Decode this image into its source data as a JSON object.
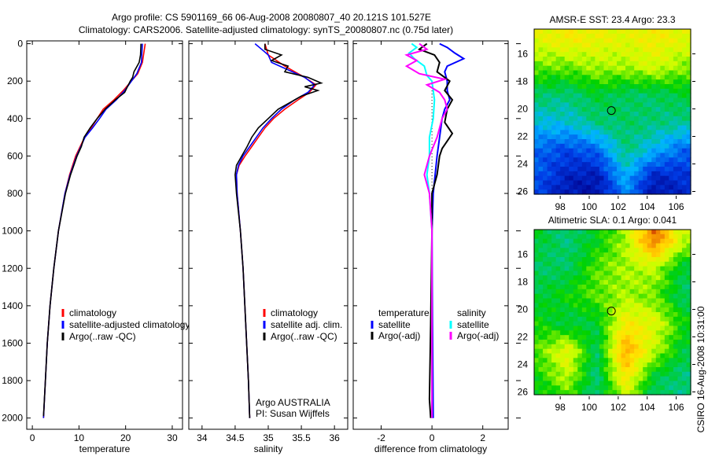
{
  "title": {
    "line1": "Argo profile: CS 5901169_66 06-Aug-2008 20080807_40 20.121S 101.527E",
    "line2": "Climatology: CARS2006. Satellite-adjusted climatology: synTS_20080807.nc (0.75d later)"
  },
  "footer_stamp": "CSIRO 16-Aug-2008 10:31:00",
  "colors": {
    "red": "#ff0000",
    "blue": "#0000ff",
    "black": "#000000",
    "cyan": "#00ffff",
    "magenta": "#ff00ff"
  },
  "chart_data": [
    {
      "type": "line",
      "id": "temperature",
      "xlabel": "temperature",
      "ylabel": "",
      "xlim": [
        -1.2,
        32.2
      ],
      "ylim": [
        2060,
        -15
      ],
      "xticks": [
        "0",
        "10",
        "20",
        "30"
      ],
      "xtick_values": [
        0,
        10,
        20,
        30
      ],
      "yticks": [
        "0",
        "200",
        "400",
        "600",
        "800",
        "1000",
        "1200",
        "1400",
        "1600",
        "1800",
        "2000"
      ],
      "ytick_values": [
        0,
        200,
        400,
        600,
        800,
        1000,
        1200,
        1400,
        1600,
        1800,
        2000
      ],
      "legend": [
        "climatology",
        "satellite-adjusted climatology",
        "Argo(..raw -QC)"
      ],
      "series": [
        {
          "name": "climatology",
          "color": "#ff0000",
          "depth": [
            0,
            100,
            160,
            250,
            300,
            350,
            400,
            450,
            500,
            600,
            700,
            800,
            1000,
            1200,
            1400,
            1600,
            1800,
            2000
          ],
          "values": [
            24.2,
            23.6,
            22.6,
            19.5,
            17.5,
            15.2,
            13.9,
            12.6,
            11.2,
            9.3,
            8.0,
            7.0,
            5.6,
            4.6,
            3.8,
            3.2,
            2.8,
            2.4
          ]
        },
        {
          "name": "satellite-adjusted climatology",
          "color": "#0000ff",
          "depth": [
            0,
            100,
            160,
            250,
            300,
            350,
            400,
            450,
            500,
            600,
            700,
            800,
            1000,
            1200,
            1400,
            1600,
            1800,
            2000
          ],
          "values": [
            23.6,
            23.4,
            22.4,
            19.8,
            18.0,
            15.8,
            14.4,
            12.9,
            11.3,
            9.5,
            8.1,
            7.0,
            5.6,
            4.6,
            3.8,
            3.2,
            2.8,
            2.4
          ]
        },
        {
          "name": "Argo(..raw -QC)",
          "color": "#000000",
          "depth": [
            0,
            60,
            100,
            150,
            180,
            200,
            230,
            260,
            300,
            350,
            400,
            450,
            500,
            550,
            600,
            650,
            700,
            800,
            1000,
            1200,
            1400,
            1600,
            1800,
            1990
          ],
          "values": [
            23.3,
            23.2,
            22.9,
            21.8,
            21.5,
            21.0,
            20.4,
            19.8,
            17.8,
            15.6,
            13.9,
            12.4,
            11.1,
            10.5,
            9.6,
            8.9,
            8.2,
            7.1,
            5.6,
            4.6,
            3.8,
            3.2,
            2.8,
            2.4
          ]
        }
      ]
    },
    {
      "type": "line",
      "id": "salinity",
      "xlabel": "salinity",
      "xlim": [
        33.8,
        36.2
      ],
      "ylim": [
        2060,
        -15
      ],
      "xticks": [
        "34",
        "34.5",
        "35",
        "35.5",
        "36"
      ],
      "xtick_values": [
        34,
        34.5,
        35,
        35.5,
        36
      ],
      "legend": [
        "climatology",
        "satellite adj. clim.",
        "Argo(..raw -QC)"
      ],
      "annotations": [
        "Argo AUSTRALIA",
        "PI: Susan Wijffels"
      ],
      "series": [
        {
          "name": "climatology",
          "color": "#ff0000",
          "depth": [
            0,
            60,
            120,
            180,
            220,
            260,
            300,
            350,
            400,
            450,
            500,
            550,
            600,
            650,
            700,
            800,
            1000,
            1200,
            1500,
            1800,
            2000
          ],
          "values": [
            34.95,
            35.0,
            35.25,
            35.55,
            35.72,
            35.62,
            35.45,
            35.25,
            35.08,
            34.95,
            34.85,
            34.75,
            34.65,
            34.56,
            34.52,
            34.53,
            34.58,
            34.62,
            34.66,
            34.7,
            34.72
          ]
        },
        {
          "name": "satellite adj. clim.",
          "color": "#0000ff",
          "depth": [
            0,
            30,
            60,
            100,
            140,
            180,
            220,
            260,
            300,
            350,
            400,
            450,
            500,
            550,
            600,
            650,
            700,
            800,
            1000,
            1200,
            1500,
            1800,
            2000
          ],
          "values": [
            34.8,
            34.9,
            35.0,
            35.05,
            35.3,
            35.55,
            35.7,
            35.6,
            35.4,
            35.2,
            35.05,
            34.92,
            34.82,
            34.72,
            34.62,
            34.55,
            34.52,
            34.53,
            34.58,
            34.62,
            34.66,
            34.7,
            34.72
          ]
        },
        {
          "name": "Argo(..raw -QC)",
          "color": "#000000",
          "depth": [
            0,
            30,
            60,
            90,
            120,
            150,
            180,
            210,
            230,
            250,
            280,
            300,
            350,
            400,
            450,
            500,
            550,
            600,
            650,
            700,
            800,
            1000,
            1200,
            1500,
            1800,
            2000
          ],
          "values": [
            34.95,
            34.95,
            35.2,
            35.05,
            35.3,
            35.25,
            35.6,
            35.8,
            35.55,
            35.75,
            35.5,
            35.4,
            35.15,
            35.0,
            34.85,
            34.75,
            34.68,
            34.6,
            34.52,
            34.5,
            34.52,
            34.58,
            34.62,
            34.66,
            34.7,
            34.72
          ]
        }
      ]
    },
    {
      "type": "line",
      "id": "difference",
      "xlabel": "difference from climatology",
      "xlim": [
        -3.1,
        3.0
      ],
      "ylim": [
        2060,
        -15
      ],
      "xticks": [
        "-2",
        "0",
        "2"
      ],
      "xtick_values": [
        -2,
        0,
        2
      ],
      "legend_headers": [
        "temperature",
        "salinity"
      ],
      "legend": [
        "satellite",
        "Argo(-adj)",
        "satellite",
        "Argo(-adj)"
      ],
      "series": [
        {
          "name": "temperature satellite",
          "color": "#0000ff",
          "depth": [
            0,
            20,
            50,
            80,
            120,
            150,
            200,
            250,
            300,
            350,
            400,
            500,
            600,
            800,
            1000,
            1500,
            2000
          ],
          "values": [
            0.3,
            0.6,
            0.9,
            1.25,
            0.6,
            0.5,
            0.6,
            0.6,
            0.7,
            0.5,
            0.4,
            0.3,
            0.2,
            0.05,
            0.0,
            0.02,
            0.05
          ]
        },
        {
          "name": "temperature Argo(-adj)",
          "color": "#000000",
          "depth": [
            0,
            30,
            60,
            100,
            150,
            200,
            250,
            300,
            350,
            420,
            480,
            520,
            560,
            600,
            700,
            800,
            1000,
            1500,
            1900,
            2000
          ],
          "values": [
            -0.2,
            -0.5,
            0.1,
            0.3,
            0.2,
            0.7,
            0.5,
            0.8,
            0.6,
            0.5,
            0.8,
            0.6,
            0.4,
            0.3,
            0.2,
            0.0,
            0.0,
            -0.05,
            -0.1,
            -0.05
          ]
        },
        {
          "name": "salinity satellite",
          "color": "#00ffff",
          "depth": [
            0,
            20,
            50,
            80,
            120,
            170,
            200,
            300,
            400,
            500,
            600,
            700,
            800,
            1000,
            1500,
            2000
          ],
          "values": [
            -0.8,
            -0.6,
            -0.9,
            -0.7,
            -0.3,
            -0.2,
            0.0,
            0.1,
            0.05,
            -0.1,
            -0.1,
            -0.2,
            -0.1,
            0.0,
            0.0,
            0.0
          ]
        },
        {
          "name": "salinity Argo(-adj)",
          "color": "#ff00ff",
          "depth": [
            0,
            30,
            60,
            90,
            120,
            160,
            190,
            220,
            260,
            300,
            350,
            400,
            500,
            600,
            700,
            800,
            1000,
            1500,
            2000
          ],
          "values": [
            -0.5,
            -0.2,
            -1.0,
            -0.6,
            -1.0,
            -0.5,
            0.5,
            -0.2,
            0.3,
            0.5,
            0.6,
            0.4,
            0.2,
            -0.1,
            -0.3,
            -0.1,
            0.0,
            0.0,
            0.0
          ]
        }
      ]
    },
    {
      "type": "heatmap",
      "id": "sst-map",
      "title": "AMSR-E SST: 23.4 Argo: 23.3",
      "xlim": [
        96.2,
        107
      ],
      "ylim": [
        -14.2,
        -26.2
      ],
      "xticks": [
        "98",
        "100",
        "102",
        "104",
        "106"
      ],
      "xtick_values": [
        98,
        100,
        102,
        104,
        106
      ],
      "yticks": [
        "-16",
        "-18",
        "-20",
        "-22",
        "-24",
        "-26"
      ],
      "ytick_labels": [
        "16",
        "18",
        "20",
        "22",
        "24",
        "26"
      ],
      "ytick_values": [
        16,
        18,
        20,
        22,
        24,
        26
      ],
      "marker": {
        "lon": 101.527,
        "lat": 20.121
      },
      "grid_lon": [
        96.5,
        98.5,
        100.5,
        102.5,
        104.5,
        106.5
      ],
      "grid_lat": [
        15,
        17,
        19,
        21,
        23,
        25,
        26
      ],
      "grid_norm": [
        [
          0.66,
          0.7,
          0.68,
          0.66,
          0.7,
          0.66
        ],
        [
          0.56,
          0.56,
          0.6,
          0.6,
          0.64,
          0.58
        ],
        [
          0.42,
          0.4,
          0.46,
          0.42,
          0.42,
          0.46
        ],
        [
          0.32,
          0.33,
          0.4,
          0.42,
          0.4,
          0.38
        ],
        [
          0.2,
          0.16,
          0.2,
          0.4,
          0.3,
          0.2
        ],
        [
          0.18,
          0.08,
          0.06,
          0.3,
          0.08,
          0.12
        ],
        [
          0.15,
          0.06,
          0.05,
          0.25,
          0.05,
          0.1
        ]
      ]
    },
    {
      "type": "heatmap",
      "id": "sla-map",
      "title": "Altimetric SLA: 0.1 Argo: 0.041",
      "xlim": [
        96.2,
        107
      ],
      "ylim": [
        -14.2,
        -26.2
      ],
      "xticks": [
        "98",
        "100",
        "102",
        "104",
        "106"
      ],
      "xtick_values": [
        98,
        100,
        102,
        104,
        106
      ],
      "ytick_labels": [
        "16",
        "18",
        "20",
        "22",
        "24",
        "26"
      ],
      "ytick_values": [
        16,
        18,
        20,
        22,
        24,
        26
      ],
      "marker": {
        "lon": 101.527,
        "lat": 20.121
      },
      "grid_lon": [
        96.5,
        98.5,
        100.5,
        102.5,
        104.5,
        106.5
      ],
      "grid_lat": [
        15,
        17,
        19,
        21,
        23,
        25,
        26
      ],
      "grid_norm": [
        [
          0.46,
          0.4,
          0.48,
          0.6,
          0.88,
          0.62
        ],
        [
          0.42,
          0.42,
          0.55,
          0.6,
          0.62,
          0.45
        ],
        [
          0.45,
          0.5,
          0.55,
          0.6,
          0.56,
          0.42
        ],
        [
          0.5,
          0.44,
          0.46,
          0.7,
          0.66,
          0.5
        ],
        [
          0.55,
          0.68,
          0.42,
          0.82,
          0.62,
          0.45
        ],
        [
          0.5,
          0.62,
          0.4,
          0.72,
          0.45,
          0.4
        ],
        [
          0.48,
          0.55,
          0.4,
          0.65,
          0.42,
          0.4
        ]
      ]
    }
  ]
}
